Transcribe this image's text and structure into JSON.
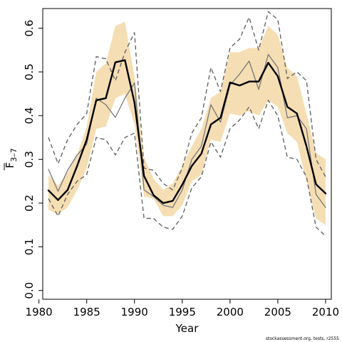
{
  "chart_data": {
    "type": "line",
    "title": "",
    "xlabel": "Year",
    "ylabel": "F3–7",
    "ylabel_main": "F",
    "ylabel_sub": "3–7",
    "xlim": [
      1980.4,
      2010.6
    ],
    "ylim": [
      -0.02,
      0.645
    ],
    "x_ticks": [
      1980,
      1985,
      1990,
      1995,
      2000,
      2005,
      2010
    ],
    "y_ticks": [
      0.0,
      0.1,
      0.2,
      0.3,
      0.4,
      0.5,
      0.6
    ],
    "x_tick_labels": [
      "1980",
      "1985",
      "1990",
      "1995",
      "2000",
      "2005",
      "2010"
    ],
    "y_tick_labels": [
      "0.0",
      "0.1",
      "0.2",
      "0.3",
      "0.4",
      "0.5",
      "0.6"
    ],
    "band_color": "#f5deb3",
    "years": [
      1981,
      1982,
      1983,
      1984,
      1985,
      1986,
      1987,
      1988,
      1989,
      1990,
      1991,
      1992,
      1993,
      1994,
      1995,
      1996,
      1997,
      1998,
      1999,
      2000,
      2001,
      2002,
      2003,
      2004,
      2005,
      2006,
      2007,
      2008,
      2009,
      2010
    ],
    "confidence_band": {
      "lower": [
        0.185,
        0.175,
        0.19,
        0.23,
        0.28,
        0.37,
        0.375,
        0.44,
        0.45,
        0.38,
        0.215,
        0.21,
        0.17,
        0.17,
        0.195,
        0.25,
        0.265,
        0.345,
        0.34,
        0.405,
        0.4,
        0.41,
        0.4,
        0.435,
        0.42,
        0.36,
        0.34,
        0.25,
        0.165,
        0.15
      ],
      "upper": [
        0.265,
        0.24,
        0.27,
        0.31,
        0.375,
        0.5,
        0.52,
        0.605,
        0.615,
        0.49,
        0.305,
        0.255,
        0.23,
        0.245,
        0.285,
        0.33,
        0.37,
        0.44,
        0.455,
        0.545,
        0.545,
        0.555,
        0.555,
        0.605,
        0.585,
        0.51,
        0.49,
        0.405,
        0.315,
        0.3
      ]
    },
    "series": [
      {
        "role": "estimate",
        "color": "#000000",
        "style": "solid-thick",
        "values": [
          0.229,
          0.207,
          0.23,
          0.285,
          0.345,
          0.435,
          0.44,
          0.522,
          0.527,
          0.43,
          0.262,
          0.218,
          0.2,
          0.205,
          0.242,
          0.285,
          0.313,
          0.38,
          0.395,
          0.476,
          0.469,
          0.478,
          0.478,
          0.521,
          0.49,
          0.42,
          0.405,
          0.33,
          0.243,
          0.222
        ]
      },
      {
        "role": "median",
        "color": "#777777",
        "style": "solid-thin",
        "values": [
          0.277,
          0.227,
          0.275,
          0.31,
          0.335,
          0.44,
          0.425,
          0.396,
          0.44,
          0.475,
          0.23,
          0.215,
          0.195,
          0.19,
          0.23,
          0.3,
          0.33,
          0.425,
          0.385,
          0.47,
          0.495,
          0.525,
          0.46,
          0.54,
          0.51,
          0.395,
          0.4,
          0.37,
          0.22,
          0.19
        ]
      },
      {
        "role": "upper-interval",
        "color": "#666666",
        "style": "dashed",
        "values": [
          0.35,
          0.29,
          0.345,
          0.38,
          0.405,
          0.535,
          0.53,
          0.48,
          0.545,
          0.59,
          0.28,
          0.275,
          0.245,
          0.23,
          0.28,
          0.36,
          0.395,
          0.51,
          0.455,
          0.555,
          0.575,
          0.625,
          0.55,
          0.638,
          0.62,
          0.485,
          0.5,
          0.48,
          0.3,
          0.26
        ]
      },
      {
        "role": "lower-interval",
        "color": "#666666",
        "style": "dashed",
        "values": [
          0.21,
          0.17,
          0.22,
          0.25,
          0.265,
          0.35,
          0.345,
          0.31,
          0.35,
          0.36,
          0.165,
          0.165,
          0.145,
          0.14,
          0.17,
          0.235,
          0.26,
          0.34,
          0.305,
          0.37,
          0.39,
          0.42,
          0.37,
          0.435,
          0.4,
          0.305,
          0.3,
          0.26,
          0.145,
          0.125
        ]
      }
    ],
    "grid": false,
    "legend": "none"
  },
  "footer": {
    "note": "stockassessment.org, tests, r2555"
  }
}
